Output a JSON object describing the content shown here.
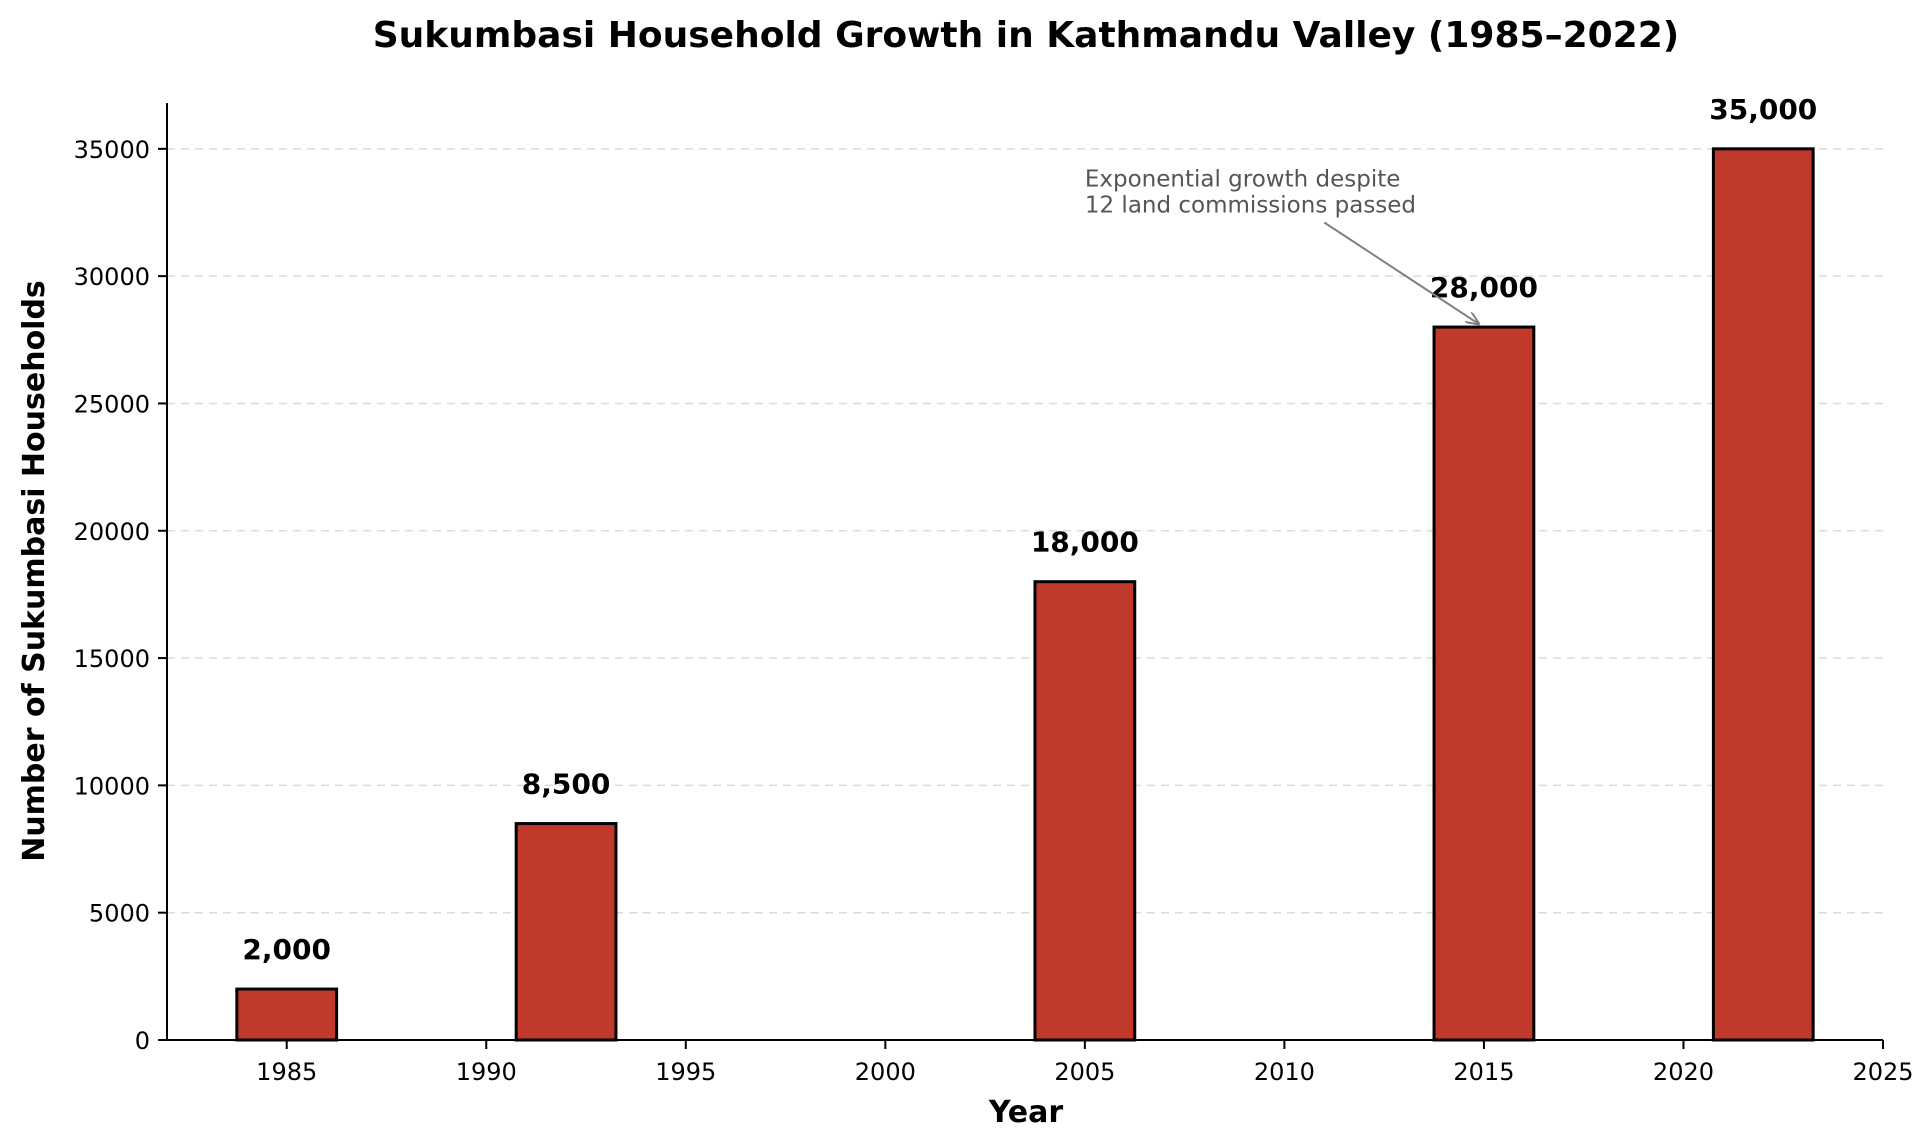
{
  "chart_data": {
    "type": "bar",
    "title": "Sukumbasi Household Growth in Kathmandu Valley (1985–2022)",
    "xlabel": "Year",
    "ylabel": "Number of Sukumbasi Households",
    "x": [
      1985,
      1992,
      2005,
      2015,
      2022
    ],
    "values": [
      2000,
      8500,
      18000,
      28000,
      35000
    ],
    "value_labels": [
      "2,000",
      "8,500",
      "18,000",
      "28,000",
      "35,000"
    ],
    "xlim": [
      1982,
      2025
    ],
    "ylim": [
      0,
      36800
    ],
    "xticks": [
      1985,
      1990,
      1995,
      2000,
      2005,
      2010,
      2015,
      2020,
      2025
    ],
    "yticks": [
      0,
      5000,
      10000,
      15000,
      20000,
      25000,
      30000,
      35000
    ],
    "bar_width_years": 2.5,
    "bar_color": "#c0392b",
    "bar_edge_color": "#000000",
    "grid": "y-dashed",
    "annotation": {
      "lines": [
        "Exponential growth despite",
        "12 land commissions passed"
      ],
      "target_x": 2015,
      "target_y": 28000,
      "text_x": 2005,
      "text_y": 32500
    }
  }
}
